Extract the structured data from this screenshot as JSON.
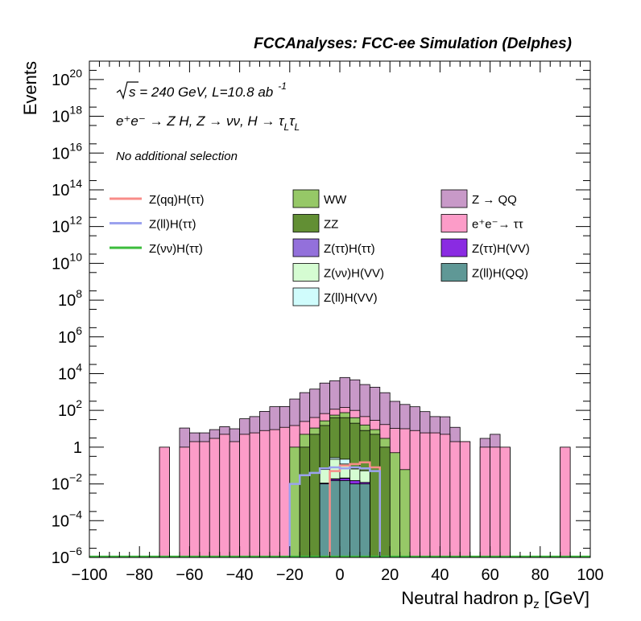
{
  "chart_data": {
    "type": "histogram",
    "title": "FCCAnalyses: FCC-ee Simulation (Delphes)",
    "xlabel": "Neutral hadron p",
    "xlabel_sub": "z",
    "xlabel_unit": "[GeV]",
    "ylabel": "Events",
    "xlim": [
      -100,
      100
    ],
    "ylim": [
      1e-06,
      1e+21
    ],
    "log_y": true,
    "grid": false,
    "bin_width": 4,
    "x_ticks": [
      {
        "v": -100,
        "label": "−100"
      },
      {
        "v": -80,
        "label": "−80"
      },
      {
        "v": -60,
        "label": "−60"
      },
      {
        "v": -40,
        "label": "−40"
      },
      {
        "v": -20,
        "label": "−20"
      },
      {
        "v": 0,
        "label": "0"
      },
      {
        "v": 20,
        "label": "20"
      },
      {
        "v": 40,
        "label": "40"
      },
      {
        "v": 60,
        "label": "60"
      },
      {
        "v": 80,
        "label": "80"
      },
      {
        "v": 100,
        "label": "100"
      }
    ],
    "y_ticks": [
      {
        "v": 1e-06,
        "base": "10",
        "exp": "−6"
      },
      {
        "v": 0.0001,
        "base": "10",
        "exp": "−4"
      },
      {
        "v": 0.01,
        "base": "10",
        "exp": "−2"
      },
      {
        "v": 1,
        "base": "1",
        "exp": ""
      },
      {
        "v": 100.0,
        "base": "10",
        "exp": "2"
      },
      {
        "v": 10000.0,
        "base": "10",
        "exp": "4"
      },
      {
        "v": 1000000.0,
        "base": "10",
        "exp": "6"
      },
      {
        "v": 100000000.0,
        "base": "10",
        "exp": "8"
      },
      {
        "v": 10000000000.0,
        "base": "10",
        "exp": "10"
      },
      {
        "v": 1000000000000.0,
        "base": "10",
        "exp": "12"
      },
      {
        "v": 100000000000000.0,
        "base": "10",
        "exp": "14"
      },
      {
        "v": 1e+16,
        "base": "10",
        "exp": "16"
      },
      {
        "v": 1e+18,
        "base": "10",
        "exp": "18"
      },
      {
        "v": 1e+20,
        "base": "10",
        "exp": "20"
      }
    ],
    "annotations": {
      "line1": "s = 240 GeV, L=10.8 ab",
      "line1_exp": "-1",
      "line2": "e⁺e⁻ → Z H, Z → νν, H → τ",
      "line2_sub1": "L",
      "line2_tau": "τ",
      "line2_sub2": "L",
      "line3": "No additional selection"
    },
    "stack_series": [
      {
        "name": "Z(ll)H(QQ)",
        "color": "#5f9896",
        "bins": [
          [
            -8,
            0.01
          ],
          [
            -4,
            0.015
          ],
          [
            0,
            0.015
          ],
          [
            4,
            0.01
          ],
          [
            8,
            0.01
          ]
        ]
      },
      {
        "name": "Z(ττ)H(VV)",
        "color": "#8a2be2",
        "bins": [
          [
            -8,
            0.001
          ],
          [
            -4,
            0.003
          ],
          [
            0,
            0.005
          ],
          [
            4,
            0.005
          ],
          [
            8,
            0.002
          ]
        ]
      },
      {
        "name": "Z(ττ)H(ττ)",
        "color": "#9370db",
        "bins": [
          [
            -4,
            0.001
          ],
          [
            0,
            0.001
          ]
        ]
      },
      {
        "name": "Z(νν)H(VV)",
        "color": "#d5fcd2",
        "bins": [
          [
            -8,
            0.05
          ],
          [
            -4,
            0.2
          ],
          [
            0,
            0.1
          ],
          [
            4,
            0.05
          ],
          [
            8,
            0.04
          ]
        ]
      },
      {
        "name": "Z(ll)H(VV)",
        "color": "#d0fcfc",
        "bins": [
          [
            -4,
            0.05
          ],
          [
            0,
            0.1
          ]
        ]
      },
      {
        "name": "ZZ",
        "color": "#628f34",
        "bins": [
          [
            -16,
            1
          ],
          [
            -12,
            5
          ],
          [
            -8,
            15
          ],
          [
            -4,
            40
          ],
          [
            0,
            40
          ],
          [
            4,
            20
          ],
          [
            8,
            8
          ],
          [
            12,
            5
          ],
          [
            16,
            1
          ]
        ]
      },
      {
        "name": "WW",
        "color": "#96c867",
        "bins": [
          [
            -20,
            1.0
          ],
          [
            -16,
            4.0
          ],
          [
            -12,
            6.0
          ],
          [
            -8,
            12
          ],
          [
            -4,
            15
          ],
          [
            0,
            35
          ],
          [
            4,
            20
          ],
          [
            8,
            8
          ],
          [
            12,
            4
          ],
          [
            16,
            2
          ],
          [
            20,
            0.5
          ],
          [
            24,
            0.06
          ]
        ]
      },
      {
        "name": "e⁺e⁻→ ττ",
        "color": "#fc9cc8",
        "bins": [
          [
            -72,
            1.0
          ],
          [
            -64,
            1.0
          ],
          [
            -60,
            2.0
          ],
          [
            -56,
            2.0
          ],
          [
            -52,
            3.0
          ],
          [
            -48,
            5.0
          ],
          [
            -44,
            2.0
          ],
          [
            -40,
            5.0
          ],
          [
            -36,
            6.0
          ],
          [
            -32,
            8.0
          ],
          [
            -28,
            9.0
          ],
          [
            -24,
            12.0
          ],
          [
            -20,
            14.0
          ],
          [
            -16,
            20.0
          ],
          [
            -12,
            30.0
          ],
          [
            -8,
            40.0
          ],
          [
            -4,
            60.0
          ],
          [
            0,
            70.0
          ],
          [
            4,
            60.0
          ],
          [
            8,
            30.0
          ],
          [
            12,
            20.0
          ],
          [
            16,
            14.0
          ],
          [
            20,
            10.0
          ],
          [
            24,
            10.0
          ],
          [
            28,
            8.0
          ],
          [
            32,
            6.0
          ],
          [
            36,
            6.0
          ],
          [
            40,
            5.0
          ],
          [
            44,
            2.0
          ],
          [
            48,
            2.0
          ],
          [
            56,
            1.0
          ],
          [
            60,
            1.0
          ],
          [
            64,
            1.0
          ],
          [
            88,
            1.0
          ]
        ]
      },
      {
        "name": "Z → QQ",
        "color": "#c899c8",
        "bins": [
          [
            -64,
            10.0
          ],
          [
            -60,
            4.0
          ],
          [
            -56,
            4.0
          ],
          [
            -52,
            6.0
          ],
          [
            -48,
            8.0
          ],
          [
            -44,
            8.0
          ],
          [
            -40,
            30.0
          ],
          [
            -36,
            40.0
          ],
          [
            -32,
            80.0
          ],
          [
            -28,
            150.0
          ],
          [
            -24,
            150.0
          ],
          [
            -20,
            400.0
          ],
          [
            -16,
            900.0
          ],
          [
            -12,
            1400.0
          ],
          [
            -8,
            3000.0
          ],
          [
            -4,
            4000.0
          ],
          [
            0,
            6000.0
          ],
          [
            4,
            4500.0
          ],
          [
            8,
            2500.0
          ],
          [
            12,
            1800.0
          ],
          [
            16,
            900.0
          ],
          [
            20,
            300.0
          ],
          [
            24,
            200.0
          ],
          [
            28,
            150.0
          ],
          [
            32,
            80.0
          ],
          [
            36,
            40.0
          ],
          [
            40,
            40.0
          ],
          [
            44,
            10.0
          ],
          [
            56,
            2.0
          ],
          [
            60,
            4.0
          ]
        ]
      }
    ],
    "line_series": [
      {
        "name": "Z(qq)H(ττ)",
        "color": "#f88c88",
        "bins": [
          [
            -4,
            0.05
          ],
          [
            0,
            0.1
          ],
          [
            4,
            0.12
          ],
          [
            8,
            0.15
          ],
          [
            12,
            0.08
          ]
        ]
      },
      {
        "name": "Z(ll)H(ττ)",
        "color": "#9ba2ee",
        "bins": [
          [
            -20,
            0.01
          ],
          [
            -16,
            0.03
          ],
          [
            -12,
            0.04
          ],
          [
            -8,
            0.07
          ],
          [
            -4,
            0.08
          ],
          [
            0,
            0.07
          ],
          [
            4,
            0.08
          ],
          [
            8,
            0.07
          ],
          [
            12,
            0.05
          ]
        ]
      },
      {
        "name": "Z(νν)H(ττ)",
        "color": "#3cbc3c",
        "bins": []
      }
    ],
    "legend": {
      "col1": [
        {
          "name": "Z(qq)H(ττ)",
          "style": "line",
          "color": "#f88c88"
        },
        {
          "name": "Z(ll)H(ττ)",
          "style": "line",
          "color": "#9ba2ee"
        },
        {
          "name": "Z(νν)H(ττ)",
          "style": "line",
          "color": "#3cbc3c"
        }
      ],
      "col2": [
        {
          "name": "WW",
          "style": "box",
          "color": "#96c867"
        },
        {
          "name": "ZZ",
          "style": "box",
          "color": "#628f34"
        },
        {
          "name": "Z(ττ)H(ττ)",
          "style": "box",
          "color": "#9370db"
        },
        {
          "name": "Z(νν)H(VV)",
          "style": "box",
          "color": "#d5fcd2"
        },
        {
          "name": "Z(ll)H(VV)",
          "style": "box",
          "color": "#d0fcfc"
        }
      ],
      "col3": [
        {
          "name": "Z → QQ",
          "style": "box",
          "color": "#c899c8"
        },
        {
          "name": "e⁺e⁻→ ττ",
          "style": "box",
          "color": "#fc9cc8"
        },
        {
          "name": "Z(ττ)H(VV)",
          "style": "box",
          "color": "#8a2be2"
        },
        {
          "name": "Z(ll)H(QQ)",
          "style": "box",
          "color": "#5f9896"
        }
      ]
    }
  }
}
